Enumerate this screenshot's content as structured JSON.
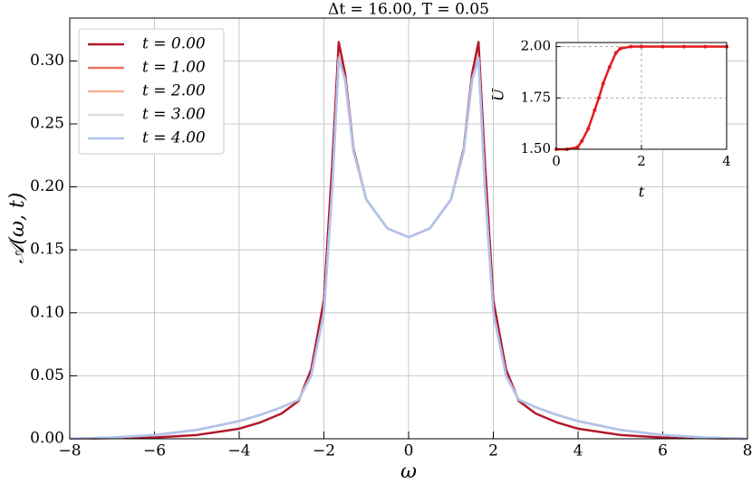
{
  "chart_data": [
    {
      "type": "line",
      "title": "Δt = 16.00, T = 0.05",
      "x_label": "ω",
      "y_label": "𝒜(ω, t)",
      "x": [
        -8,
        -7,
        -6,
        -5,
        -4,
        -3.5,
        -3,
        -2.6,
        -2.3,
        -2,
        -1.8,
        -1.65,
        -1.5,
        -1.3,
        -1,
        -0.5,
        0,
        0.5,
        1,
        1.3,
        1.5,
        1.65,
        1.8,
        2,
        2.3,
        2.6,
        3,
        3.5,
        4,
        5,
        6,
        7,
        8
      ],
      "series": [
        {
          "name": "t = 0.00",
          "color": "#b2182b",
          "values": [
            0,
            0.0005,
            0.001,
            0.003,
            0.008,
            0.013,
            0.02,
            0.03,
            0.055,
            0.11,
            0.22,
            0.315,
            0.29,
            0.23,
            0.19,
            0.167,
            0.16,
            0.167,
            0.19,
            0.23,
            0.29,
            0.315,
            0.22,
            0.11,
            0.055,
            0.03,
            0.02,
            0.013,
            0.008,
            0.003,
            0.001,
            0.0005,
            0
          ]
        },
        {
          "name": "t = 1.00",
          "color": "#e8735f",
          "values": [
            0,
            0.001,
            0.003,
            0.007,
            0.014,
            0.019,
            0.025,
            0.031,
            0.05,
            0.1,
            0.2,
            0.303,
            0.285,
            0.228,
            0.19,
            0.167,
            0.16,
            0.167,
            0.19,
            0.228,
            0.285,
            0.303,
            0.2,
            0.1,
            0.05,
            0.031,
            0.025,
            0.019,
            0.014,
            0.007,
            0.003,
            0.001,
            0
          ]
        },
        {
          "name": "t = 2.00",
          "color": "#f6b495",
          "values": [
            0,
            0.001,
            0.003,
            0.007,
            0.014,
            0.019,
            0.025,
            0.031,
            0.05,
            0.1,
            0.2,
            0.302,
            0.285,
            0.228,
            0.19,
            0.167,
            0.16,
            0.167,
            0.19,
            0.228,
            0.285,
            0.302,
            0.2,
            0.1,
            0.05,
            0.031,
            0.025,
            0.019,
            0.014,
            0.007,
            0.003,
            0.001,
            0
          ]
        },
        {
          "name": "t = 3.00",
          "color": "#dcdcdc",
          "values": [
            0,
            0.001,
            0.003,
            0.007,
            0.014,
            0.019,
            0.025,
            0.031,
            0.05,
            0.1,
            0.2,
            0.302,
            0.285,
            0.228,
            0.19,
            0.167,
            0.16,
            0.167,
            0.19,
            0.228,
            0.285,
            0.302,
            0.2,
            0.1,
            0.05,
            0.031,
            0.025,
            0.019,
            0.014,
            0.007,
            0.003,
            0.001,
            0
          ]
        },
        {
          "name": "t = 4.00",
          "color": "#aec4ee",
          "values": [
            0,
            0.001,
            0.003,
            0.007,
            0.014,
            0.019,
            0.025,
            0.031,
            0.05,
            0.1,
            0.2,
            0.302,
            0.285,
            0.228,
            0.19,
            0.167,
            0.16,
            0.167,
            0.19,
            0.228,
            0.285,
            0.302,
            0.2,
            0.1,
            0.05,
            0.031,
            0.025,
            0.019,
            0.014,
            0.007,
            0.003,
            0.001,
            0
          ]
        }
      ],
      "xlim": [
        -8,
        8
      ],
      "ylim": [
        0,
        0.334
      ],
      "xticks": [
        {
          "value": -8,
          "label": "−8"
        },
        {
          "value": -6,
          "label": "−6"
        },
        {
          "value": -4,
          "label": "−4"
        },
        {
          "value": -2,
          "label": "−2"
        },
        0,
        2,
        4,
        6,
        8
      ],
      "yticks": [
        {
          "value": 0,
          "label": "0.00"
        },
        {
          "value": 0.05,
          "label": "0.05"
        },
        {
          "value": 0.1,
          "label": "0.10"
        },
        {
          "value": 0.15,
          "label": "0.15"
        },
        {
          "value": 0.2,
          "label": "0.20"
        },
        {
          "value": 0.25,
          "label": "0.25"
        },
        {
          "value": 0.3,
          "label": "0.30"
        }
      ],
      "grid": true,
      "legend": "upper left"
    },
    {
      "type": "line",
      "x_label": "t",
      "y_label": "U",
      "x": [
        0,
        0.25,
        0.5,
        0.6,
        0.75,
        0.9,
        1.0,
        1.1,
        1.25,
        1.4,
        1.5,
        1.75,
        2,
        2.5,
        3,
        3.5,
        4
      ],
      "series": [
        {
          "name": "U",
          "color": "#e41a1c",
          "values": [
            1.5,
            1.5,
            1.51,
            1.54,
            1.6,
            1.69,
            1.75,
            1.82,
            1.9,
            1.97,
            1.99,
            2.0,
            2.0,
            2.0,
            2.0,
            2.0,
            2.0
          ]
        }
      ],
      "xlim": [
        0,
        4
      ],
      "ylim": [
        1.5,
        2.02
      ],
      "xticks": [
        0,
        2,
        4
      ],
      "yticks": [
        {
          "value": 1.5,
          "label": "1.50"
        },
        {
          "value": 1.75,
          "label": "1.75"
        },
        {
          "value": 2.0,
          "label": "2.00"
        }
      ],
      "grid": true
    }
  ]
}
